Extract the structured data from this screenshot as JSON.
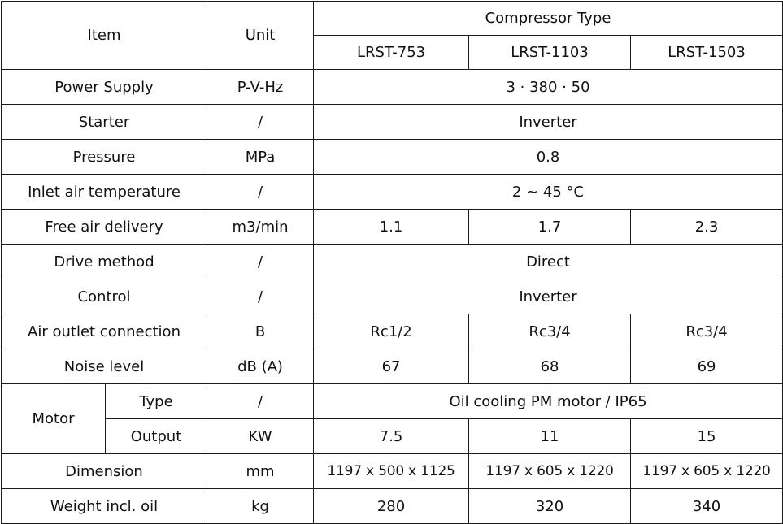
{
  "header": {
    "item": "Item",
    "unit": "Unit",
    "group": "Compressor Type",
    "models": [
      "LRST-753",
      "LRST-1103",
      "LRST-1503"
    ]
  },
  "rows": {
    "power_supply": {
      "label": "Power Supply",
      "unit": "P-V-Hz",
      "value": "3 · 380 · 50"
    },
    "starter": {
      "label": "Starter",
      "unit": "/",
      "value": "Inverter"
    },
    "pressure": {
      "label": "Pressure",
      "unit": "MPa",
      "value": "0.8"
    },
    "inlet_air_temperature": {
      "label": "Inlet air temperature",
      "unit": "/",
      "value": "2 ~ 45 °C"
    },
    "free_air_delivery": {
      "label": "Free air delivery",
      "unit": "m3/min",
      "values": [
        "1.1",
        "1.7",
        "2.3"
      ]
    },
    "drive_method": {
      "label": "Drive method",
      "unit": "/",
      "value": "Direct"
    },
    "control": {
      "label": "Control",
      "unit": "/",
      "value": "Inverter"
    },
    "air_outlet_connection": {
      "label": "Air outlet connection",
      "unit": "B",
      "values": [
        "Rc1/2",
        "Rc3/4",
        "Rc3/4"
      ]
    },
    "noise_level": {
      "label": "Noise level",
      "unit": "dB (A)",
      "values": [
        "67",
        "68",
        "69"
      ]
    },
    "motor": {
      "label": "Motor",
      "type": {
        "label": "Type",
        "unit": "/",
        "value": "Oil cooling PM motor / IP65"
      },
      "output": {
        "label": "Output",
        "unit": "KW",
        "values": [
          "7.5",
          "11",
          "15"
        ]
      }
    },
    "dimension": {
      "label": "Dimension",
      "unit": "mm",
      "values": [
        "1197 x 500 x 1125",
        "1197 x 605 x 1220",
        "1197 x 605 x 1220"
      ]
    },
    "weight": {
      "label": "Weight incl. oil",
      "unit": "kg",
      "values": [
        "280",
        "320",
        "340"
      ]
    }
  }
}
